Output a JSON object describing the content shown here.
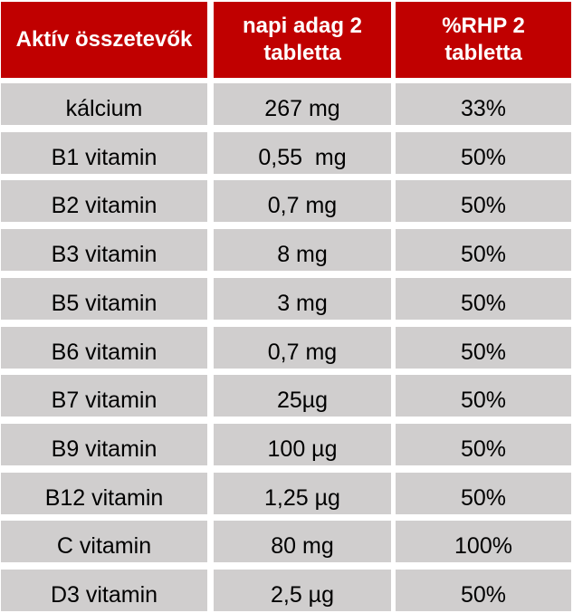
{
  "header": {
    "col1": "Aktív összetevők",
    "col2_line1": "napi adag 2",
    "col2_line2": "tabletta",
    "col3_line1": "%RHP 2",
    "col3_line2": "tabletta"
  },
  "colors": {
    "header_bg": "#c00000",
    "header_text": "#ffffff",
    "row_bg": "#d0cece"
  },
  "rows": [
    {
      "ingredient": "kálcium",
      "dose": "267 mg",
      "rhp": "33%"
    },
    {
      "ingredient": "B1 vitamin",
      "dose": "0,55  mg",
      "rhp": "50%"
    },
    {
      "ingredient": "B2 vitamin",
      "dose": "0,7 mg",
      "rhp": "50%"
    },
    {
      "ingredient": "B3 vitamin",
      "dose": "8 mg",
      "rhp": "50%"
    },
    {
      "ingredient": "B5 vitamin",
      "dose": "3 mg",
      "rhp": "50%"
    },
    {
      "ingredient": "B6 vitamin",
      "dose": "0,7 mg",
      "rhp": "50%"
    },
    {
      "ingredient": "B7 vitamin",
      "dose": "25µg",
      "rhp": "50%"
    },
    {
      "ingredient": "B9 vitamin",
      "dose": "100 µg",
      "rhp": "50%"
    },
    {
      "ingredient": "B12 vitamin",
      "dose": "1,25 µg",
      "rhp": "50%"
    },
    {
      "ingredient": "C vitamin",
      "dose": "80 mg",
      "rhp": "100%"
    },
    {
      "ingredient": "D3 vitamin",
      "dose": "2,5 µg",
      "rhp": "50%"
    }
  ]
}
